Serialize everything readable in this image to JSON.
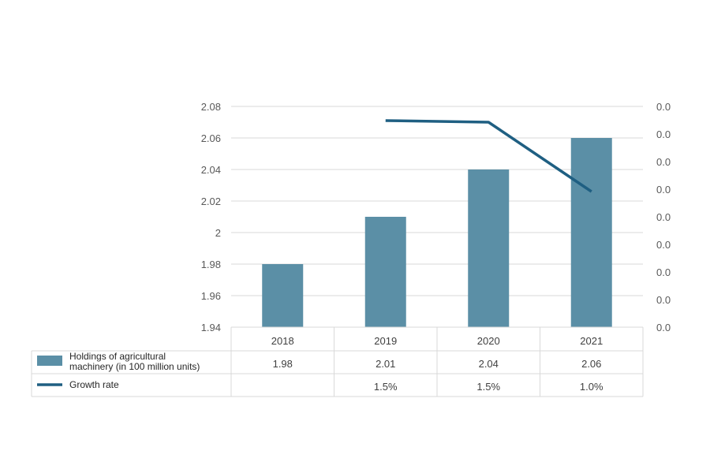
{
  "colors": {
    "bar": "#5b8fa6",
    "line": "#1f5f82",
    "grid": "#d9d9d9",
    "table_border": "#d9d9d9",
    "text": "#404040"
  },
  "chart_data": {
    "type": "bar",
    "categories": [
      "2018",
      "2019",
      "2020",
      "2021"
    ],
    "series": [
      {
        "name": "Holdings of agricultural machinery (in 100 million units)",
        "name_lines": [
          "Holdings of agricultural",
          "machinery (in 100 million units)"
        ],
        "type": "bar",
        "axis": "left",
        "values": [
          1.98,
          2.01,
          2.04,
          2.06
        ],
        "table_labels": [
          "1.98",
          "2.01",
          "2.04",
          "2.06"
        ]
      },
      {
        "name": "Growth rate",
        "type": "line",
        "axis": "right",
        "values": [
          null,
          1.5,
          1.5,
          1.0
        ],
        "table_labels": [
          "",
          "1.5%",
          "1.5%",
          "1.0%"
        ]
      }
    ],
    "y_left": {
      "ylim": [
        1.94,
        2.08
      ],
      "ticks": [
        1.94,
        1.96,
        1.98,
        2.0,
        2.02,
        2.04,
        2.06,
        2.08
      ],
      "tick_labels": [
        "1.94",
        "1.96",
        "1.98",
        "2",
        "2.02",
        "2.04",
        "2.06",
        "2.08"
      ]
    },
    "y_right": {
      "tick_labels": [
        "0.0",
        "0.0",
        "0.0",
        "0.0",
        "0.0",
        "0.0",
        "0.0",
        "0.0",
        "0.0"
      ]
    },
    "grid": true,
    "legend": "data-table",
    "title": "",
    "xlabel": "",
    "ylabel": ""
  }
}
